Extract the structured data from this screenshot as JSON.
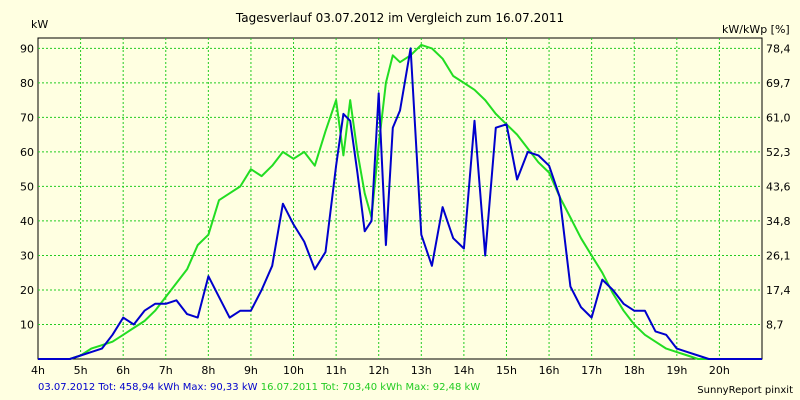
{
  "chart_data": {
    "type": "line",
    "title": "Tagesverlauf 03.07.2012 im Vergleich zum 16.07.2011",
    "ylabel": "kW",
    "ylabel_right": "kW/kWp [%]",
    "xlim": [
      4,
      21
    ],
    "ylim": [
      0,
      93
    ],
    "grid": true,
    "x_ticks": [
      "4h",
      "5h",
      "6h",
      "7h",
      "8h",
      "9h",
      "10h",
      "11h",
      "12h",
      "13h",
      "14h",
      "15h",
      "16h",
      "17h",
      "18h",
      "19h",
      "20h"
    ],
    "y_ticks": [
      "10",
      "20",
      "30",
      "40",
      "50",
      "60",
      "70",
      "80",
      "90"
    ],
    "y_ticks_right": [
      "8,7",
      "17,4",
      "26,1",
      "34,8",
      "43,6",
      "52,3",
      "61,0",
      "69,7",
      "78,4"
    ],
    "series": [
      {
        "name": "03.07.2012",
        "color": "#0000cc",
        "x": [
          4,
          4.75,
          5,
          5.25,
          5.5,
          5.75,
          6,
          6.25,
          6.5,
          6.75,
          7,
          7.25,
          7.5,
          7.75,
          8,
          8.25,
          8.5,
          8.75,
          9,
          9.25,
          9.5,
          9.75,
          10,
          10.25,
          10.5,
          10.75,
          11,
          11.17,
          11.33,
          11.5,
          11.67,
          11.83,
          12,
          12.17,
          12.33,
          12.5,
          12.75,
          13,
          13.25,
          13.5,
          13.75,
          14,
          14.25,
          14.5,
          14.75,
          15,
          15.25,
          15.5,
          15.75,
          16,
          16.25,
          16.5,
          16.75,
          17,
          17.25,
          17.5,
          17.75,
          18,
          18.25,
          18.5,
          18.75,
          19,
          19.25,
          19.5,
          19.75,
          20,
          21
        ],
        "y": [
          0,
          0,
          1,
          2,
          3,
          7,
          12,
          10,
          14,
          16,
          16,
          17,
          13,
          12,
          24,
          18,
          12,
          14,
          14,
          20,
          27,
          45,
          39,
          34,
          26,
          31,
          56,
          71,
          69,
          54,
          37,
          40,
          77,
          33,
          67,
          72,
          90,
          36,
          27,
          44,
          35,
          32,
          69,
          30,
          67,
          68,
          52,
          60,
          59,
          56,
          47,
          21,
          15,
          12,
          23,
          20,
          16,
          14,
          14,
          8,
          7,
          3,
          2,
          1,
          0,
          0,
          0
        ]
      },
      {
        "name": "16.07.2011",
        "color": "#22dd22",
        "x": [
          4,
          4.75,
          5,
          5.25,
          5.5,
          5.75,
          6,
          6.25,
          6.5,
          6.75,
          7,
          7.25,
          7.5,
          7.75,
          8,
          8.25,
          8.5,
          8.75,
          9,
          9.25,
          9.5,
          9.75,
          10,
          10.25,
          10.5,
          10.75,
          11,
          11.17,
          11.33,
          11.5,
          11.67,
          11.83,
          12,
          12.17,
          12.33,
          12.5,
          12.75,
          13,
          13.25,
          13.5,
          13.75,
          14,
          14.25,
          14.5,
          14.75,
          15,
          15.25,
          15.5,
          15.75,
          16,
          16.25,
          16.5,
          16.75,
          17,
          17.25,
          17.5,
          17.75,
          18,
          18.25,
          18.5,
          18.75,
          19,
          19.25,
          19.5,
          19.75,
          20,
          21
        ],
        "y": [
          0,
          0,
          1,
          3,
          4,
          5,
          7,
          9,
          11,
          14,
          18,
          22,
          26,
          33,
          36,
          46,
          48,
          50,
          55,
          53,
          56,
          60,
          58,
          60,
          56,
          66,
          75,
          59,
          75,
          60,
          48,
          41,
          62,
          80,
          88,
          86,
          88,
          91,
          90,
          87,
          82,
          80,
          78,
          75,
          71,
          68,
          65,
          61,
          57,
          54,
          47,
          41,
          35,
          30,
          25,
          19,
          14,
          10,
          7,
          5,
          3,
          2,
          1,
          0,
          0,
          0,
          0
        ]
      }
    ]
  },
  "footer": {
    "blue_text": "03.07.2012 Tot: 458,94 kWh Max: 90,33 kW",
    "green_text": "16.07.2011 Tot: 703,40 kWh Max: 92,48 kW",
    "credit": "SunnyReport pinxit"
  }
}
